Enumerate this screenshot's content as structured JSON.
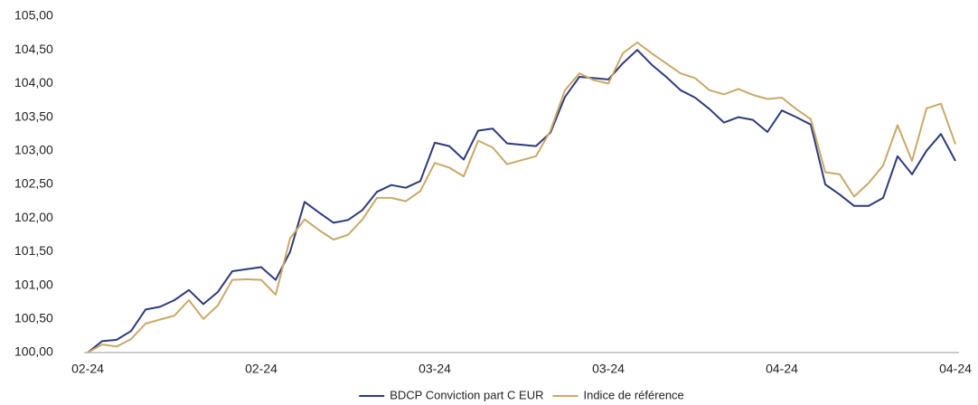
{
  "chart_data": {
    "type": "line",
    "categories": [
      "02-24",
      null,
      null,
      null,
      null,
      null,
      null,
      null,
      null,
      null,
      null,
      null,
      "02-24",
      null,
      null,
      null,
      null,
      null,
      null,
      null,
      null,
      null,
      null,
      null,
      "03-24",
      null,
      null,
      null,
      null,
      null,
      null,
      null,
      null,
      null,
      null,
      null,
      "03-24",
      null,
      null,
      null,
      null,
      null,
      null,
      null,
      null,
      null,
      null,
      null,
      "04-24",
      null,
      null,
      null,
      null,
      null,
      null,
      null,
      null,
      null,
      null,
      null,
      "04-24"
    ],
    "series": [
      {
        "name": "BDCP Conviction part C EUR",
        "color": "#2e3a7c",
        "values": [
          100.0,
          100.17,
          100.19,
          100.32,
          100.64,
          100.68,
          100.78,
          100.93,
          100.72,
          100.9,
          101.21,
          101.24,
          101.27,
          101.08,
          101.5,
          102.24,
          102.08,
          101.93,
          101.97,
          102.12,
          102.39,
          102.49,
          102.45,
          102.55,
          103.12,
          103.07,
          102.87,
          103.3,
          103.33,
          103.11,
          103.09,
          103.07,
          103.27,
          103.8,
          104.1,
          104.08,
          104.06,
          104.3,
          104.5,
          104.28,
          104.1,
          103.9,
          103.79,
          103.62,
          103.42,
          103.5,
          103.46,
          103.28,
          103.6,
          103.5,
          103.39,
          102.5,
          102.35,
          102.18,
          102.18,
          102.3,
          102.92,
          102.65,
          103.0,
          103.25,
          102.85
        ]
      },
      {
        "name": "Indice de référence",
        "color": "#c9a968",
        "values": [
          100.0,
          100.12,
          100.09,
          100.2,
          100.43,
          100.49,
          100.55,
          100.78,
          100.5,
          100.7,
          101.08,
          101.09,
          101.08,
          100.86,
          101.7,
          101.98,
          101.82,
          101.68,
          101.75,
          101.98,
          102.3,
          102.3,
          102.25,
          102.4,
          102.82,
          102.75,
          102.62,
          103.15,
          103.05,
          102.8,
          102.86,
          102.92,
          103.3,
          103.9,
          104.15,
          104.05,
          104.0,
          104.45,
          104.61,
          104.45,
          104.3,
          104.15,
          104.08,
          103.9,
          103.84,
          103.92,
          103.83,
          103.77,
          103.79,
          103.62,
          103.47,
          102.68,
          102.65,
          102.32,
          102.52,
          102.78,
          103.38,
          102.85,
          103.63,
          103.7,
          103.1
        ]
      }
    ],
    "ylim": [
      100,
      105
    ],
    "yticks": [
      {
        "value": 100,
        "label": "100,00"
      },
      {
        "value": 100.5,
        "label": "100,50"
      },
      {
        "value": 101,
        "label": "101,00"
      },
      {
        "value": 101.5,
        "label": "101,50"
      },
      {
        "value": 102,
        "label": "102,00"
      },
      {
        "value": 102.5,
        "label": "102,50"
      },
      {
        "value": 103,
        "label": "103,00"
      },
      {
        "value": 103.5,
        "label": "103,50"
      },
      {
        "value": 104,
        "label": "104,00"
      },
      {
        "value": 104.5,
        "label": "104,50"
      },
      {
        "value": 105,
        "label": "105,00"
      }
    ],
    "grid": false,
    "legend": "bottom"
  }
}
